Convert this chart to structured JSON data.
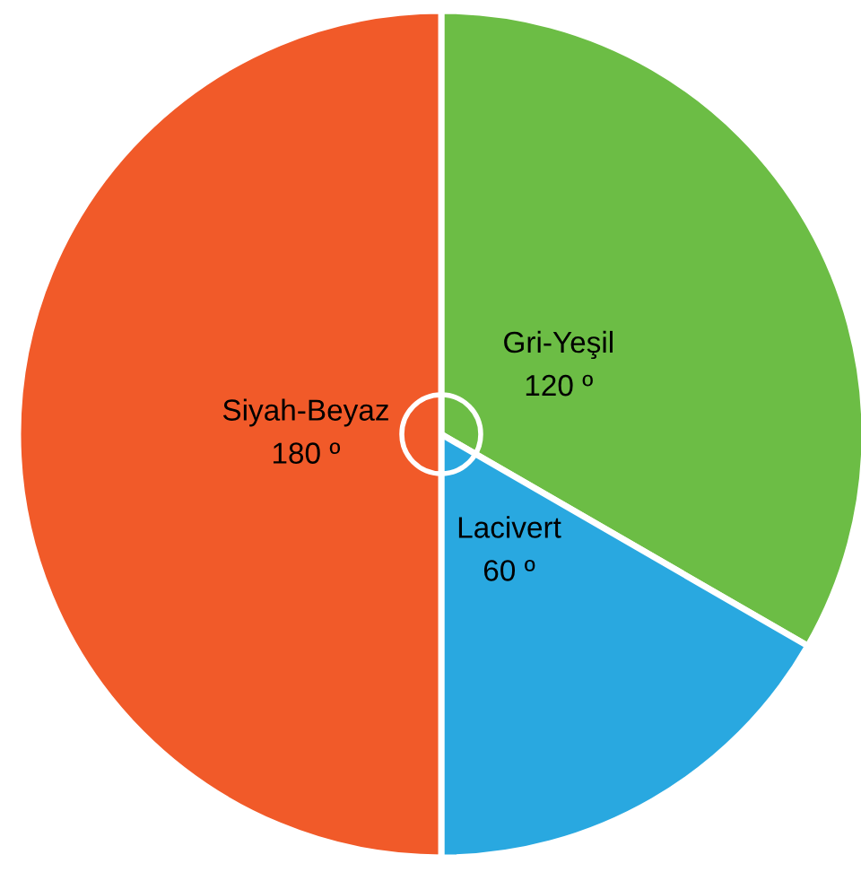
{
  "chart_data": {
    "type": "pie",
    "categories": [
      "Gri-Yeşil",
      "Lacivert",
      "Siyah-Beyaz"
    ],
    "values": [
      120,
      60,
      180
    ],
    "colors": [
      "#6cbd45",
      "#29a8e0",
      "#f15a29"
    ],
    "value_labels": [
      "120 º",
      "60 º",
      "180 º"
    ]
  }
}
